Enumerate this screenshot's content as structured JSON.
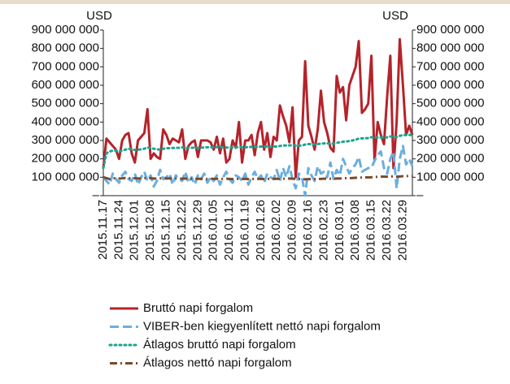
{
  "chart_data": {
    "type": "line",
    "y_axis_label": "USD",
    "y2_axis_label": "USD",
    "categories": [
      "2015.11.17",
      null,
      null,
      null,
      null,
      "2015.11.24",
      null,
      null,
      null,
      null,
      "2015.12.01",
      null,
      null,
      null,
      null,
      "2015.12.08",
      null,
      null,
      null,
      null,
      "2015.12.15",
      null,
      null,
      null,
      null,
      "2015.12.22",
      null,
      null,
      null,
      null,
      "2015.12.29",
      null,
      null,
      null,
      null,
      "2016.01.05",
      null,
      null,
      null,
      null,
      "2016.01.12",
      null,
      null,
      null,
      null,
      "2016.01.19",
      null,
      null,
      null,
      null,
      "2016.01.26",
      null,
      null,
      null,
      null,
      "2016.02.02",
      null,
      null,
      null,
      null,
      "2016.02.09",
      null,
      null,
      null,
      null,
      "2016.02.16",
      null,
      null,
      null,
      null,
      "2016.02.23",
      null,
      null,
      null,
      null,
      "2016.03.01",
      null,
      null,
      null,
      null,
      "2016.03.08",
      null,
      null,
      null,
      null,
      "2016.03.15",
      null,
      null,
      null,
      null,
      "2016.03.22",
      null,
      null,
      null,
      null,
      "2016.03.29",
      null,
      null,
      null
    ],
    "ylim": [
      0,
      900000000
    ],
    "yticks": [
      {
        "value": 0,
        "label": "–"
      },
      {
        "value": 100000000,
        "label": "100 000 000"
      },
      {
        "value": 200000000,
        "label": "200 000 000"
      },
      {
        "value": 300000000,
        "label": "300 000 000"
      },
      {
        "value": 400000000,
        "label": "400 000 000"
      },
      {
        "value": 500000000,
        "label": "500 000 000"
      },
      {
        "value": 600000000,
        "label": "600 000 000"
      },
      {
        "value": 700000000,
        "label": "700 000 000"
      },
      {
        "value": 800000000,
        "label": "800 000 000"
      },
      {
        "value": 900000000,
        "label": "900 000 000"
      }
    ],
    "y2lim": [
      0,
      900000000
    ],
    "y2ticks": [
      {
        "value": 0,
        "label": "–"
      },
      {
        "value": 100000000,
        "label": "100 000 000"
      },
      {
        "value": 200000000,
        "label": "200 000 000"
      },
      {
        "value": 300000000,
        "label": "300 000 000"
      },
      {
        "value": 400000000,
        "label": "400 000 000"
      },
      {
        "value": 500000000,
        "label": "500 000 000"
      },
      {
        "value": 600000000,
        "label": "600 000 000"
      },
      {
        "value": 700000000,
        "label": "700 000 000"
      },
      {
        "value": 800000000,
        "label": "800 000 000"
      },
      {
        "value": 900000000,
        "label": "900 000 000"
      }
    ],
    "series": [
      {
        "name": "Bruttó napi forgalom",
        "color": "#b5232a",
        "style": "solid",
        "values": [
          150000000.0,
          310000000.0,
          290000000.0,
          270000000.0,
          250000000.0,
          200000000.0,
          300000000.0,
          330000000.0,
          340000000.0,
          230000000.0,
          180000000.0,
          300000000.0,
          320000000.0,
          340000000.0,
          470000000.0,
          200000000.0,
          230000000.0,
          210000000.0,
          200000000.0,
          360000000.0,
          330000000.0,
          280000000.0,
          310000000.0,
          300000000.0,
          290000000.0,
          360000000.0,
          200000000.0,
          270000000.0,
          290000000.0,
          300000000.0,
          210000000.0,
          300000000.0,
          300000000.0,
          300000000.0,
          290000000.0,
          250000000.0,
          320000000.0,
          230000000.0,
          310000000.0,
          180000000.0,
          200000000.0,
          300000000.0,
          260000000.0,
          400000000.0,
          180000000.0,
          300000000.0,
          300000000.0,
          330000000.0,
          220000000.0,
          340000000.0,
          400000000.0,
          250000000.0,
          340000000.0,
          210000000.0,
          320000000.0,
          300000000.0,
          490000000.0,
          430000000.0,
          380000000.0,
          290000000.0,
          480000000.0,
          100000000.0,
          300000000.0,
          320000000.0,
          730000000.0,
          380000000.0,
          320000000.0,
          250000000.0,
          360000000.0,
          570000000.0,
          400000000.0,
          340000000.0,
          260000000.0,
          240000000.0,
          650000000.0,
          560000000.0,
          590000000.0,
          410000000.0,
          600000000.0,
          650000000.0,
          700000000.0,
          840000000.0,
          450000000.0,
          470000000.0,
          500000000.0,
          760000000.0,
          190000000.0,
          400000000.0,
          330000000.0,
          280000000.0,
          540000000.0,
          760000000.0,
          150000000.0,
          400000000.0,
          850000000.0,
          600000000.0,
          330000000.0,
          380000000.0,
          330000000.0
        ]
      },
      {
        "name": "VIBER-ben kiegyenlített nettó napi forgalom",
        "color": "#6aaedf",
        "style": "dashed",
        "values": [
          100000000.0,
          80000000.0,
          60000000.0,
          120000000.0,
          90000000.0,
          70000000.0,
          110000000.0,
          130000000.0,
          90000000.0,
          80000000.0,
          120000000.0,
          60000000.0,
          100000000.0,
          130000000.0,
          80000000.0,
          110000000.0,
          50000000.0,
          80000000.0,
          140000000.0,
          90000000.0,
          100000000.0,
          120000000.0,
          60000000.0,
          110000000.0,
          90000000.0,
          80000000.0,
          130000000.0,
          70000000.0,
          100000000.0,
          60000000.0,
          110000000.0,
          90000000.0,
          120000000.0,
          70000000.0,
          100000000.0,
          80000000.0,
          110000000.0,
          60000000.0,
          100000000.0,
          130000000.0,
          90000000.0,
          70000000.0,
          110000000.0,
          100000000.0,
          80000000.0,
          120000000.0,
          60000000.0,
          100000000.0,
          130000000.0,
          90000000.0,
          110000000.0,
          70000000.0,
          120000000.0,
          100000000.0,
          90000000.0,
          140000000.0,
          80000000.0,
          150000000.0,
          100000000.0,
          160000000.0,
          90000000.0,
          40000000.0,
          120000000.0,
          100000000.0,
          0,
          150000000.0,
          110000000.0,
          80000000.0,
          160000000.0,
          120000000.0,
          130000000.0,
          100000000.0,
          180000000.0,
          90000000.0,
          140000000.0,
          110000000.0,
          200000000.0,
          160000000.0,
          120000000.0,
          150000000.0,
          170000000.0,
          210000000.0,
          130000000.0,
          140000000.0,
          150000000.0,
          150000000.0,
          190000000.0,
          220000000.0,
          240000000.0,
          150000000.0,
          120000000.0,
          200000000.0,
          240000000.0,
          40000000.0,
          200000000.0,
          270000000.0,
          170000000.0,
          200000000.0,
          160000000.0
        ]
      },
      {
        "name": "Átlagos bruttó napi forgalom",
        "color": "#1aa58f",
        "style": "dotted",
        "values": [
          150000000.0,
          230000000.0,
          240000000.0,
          245000000.0,
          245000000.0,
          240000000.0,
          245000000.0,
          250000000.0,
          255000000.0,
          252000000.0,
          248000000.0,
          250000000.0,
          252000000.0,
          255000000.0,
          262000000.0,
          258000000.0,
          255000000.0,
          252000000.0,
          250000000.0,
          255000000.0,
          258000000.0,
          258000000.0,
          259000000.0,
          260000000.0,
          260000000.0,
          262000000.0,
          260000000.0,
          260000000.0,
          260000000.0,
          261000000.0,
          260000000.0,
          261000000.0,
          262000000.0,
          263000000.0,
          263000000.0,
          263000000.0,
          264000000.0,
          263000000.0,
          264000000.0,
          262000000.0,
          261000000.0,
          262000000.0,
          262000000.0,
          265000000.0,
          263000000.0,
          263000000.0,
          264000000.0,
          265000000.0,
          264000000.0,
          265000000.0,
          267000000.0,
          266000000.0,
          267000000.0,
          266000000.0,
          267000000.0,
          267000000.0,
          270000000.0,
          272000000.0,
          273000000.0,
          273000000.0,
          275000000.0,
          272000000.0,
          272000000.0,
          272000000.0,
          278000000.0,
          280000000.0,
          280000000.0,
          279000000.0,
          280000000.0,
          283000000.0,
          284000000.0,
          284000000.0,
          283000000.0,
          282000000.0,
          287000000.0,
          290000000.0,
          293000000.0,
          294000000.0,
          297000000.0,
          300000000.0,
          304000000.0,
          310000000.0,
          311000000.0,
          312000000.0,
          313000000.0,
          318000000.0,
          315000000.0,
          316000000.0,
          316000000.0,
          315000000.0,
          317000000.0,
          322000000.0,
          319000000.0,
          319000000.0,
          325000000.0,
          329000000.0,
          329000000.0,
          330000000.0,
          330000000.0
        ]
      },
      {
        "name": "Átlagos nettó napi forgalom",
        "color": "#7a4a2b",
        "style": "dashdot",
        "values": [
          100000000.0,
          95000000.0,
          90000000.0,
          95000000.0,
          95000000.0,
          93000000.0,
          94000000.0,
          96000000.0,
          95000000.0,
          94000000.0,
          95000000.0,
          93000000.0,
          94000000.0,
          96000000.0,
          95000000.0,
          95000000.0,
          93000000.0,
          92000000.0,
          94000000.0,
          93000000.0,
          93000000.0,
          94000000.0,
          92000000.0,
          93000000.0,
          93000000.0,
          92000000.0,
          93000000.0,
          92000000.0,
          92000000.0,
          91000000.0,
          92000000.0,
          91000000.0,
          92000000.0,
          91000000.0,
          92000000.0,
          91000000.0,
          92000000.0,
          91000000.0,
          91000000.0,
          92000000.0,
          91000000.0,
          90000000.0,
          91000000.0,
          91000000.0,
          91000000.0,
          91000000.0,
          90000000.0,
          91000000.0,
          91000000.0,
          91000000.0,
          91000000.0,
          90000000.0,
          91000000.0,
          91000000.0,
          91000000.0,
          92000000.0,
          91000000.0,
          92000000.0,
          92000000.0,
          93000000.0,
          92000000.0,
          91000000.0,
          91000000.0,
          91000000.0,
          89000000.0,
          90000000.0,
          90000000.0,
          90000000.0,
          91000000.0,
          91000000.0,
          92000000.0,
          92000000.0,
          92000000.0,
          92000000.0,
          93000000.0,
          93000000.0,
          94000000.0,
          95000000.0,
          95000000.0,
          96000000.0,
          97000000.0,
          98000000.0,
          98000000.0,
          99000000.0,
          99000000.0,
          100000000.0,
          101000000.0,
          102000000.0,
          103000000.0,
          103000000.0,
          103000000.0,
          104000000.0,
          105000000.0,
          103000000.0,
          104000000.0,
          106000000.0,
          106000000.0,
          107000000.0,
          107000000.0
        ]
      }
    ],
    "legend": "bottom"
  }
}
